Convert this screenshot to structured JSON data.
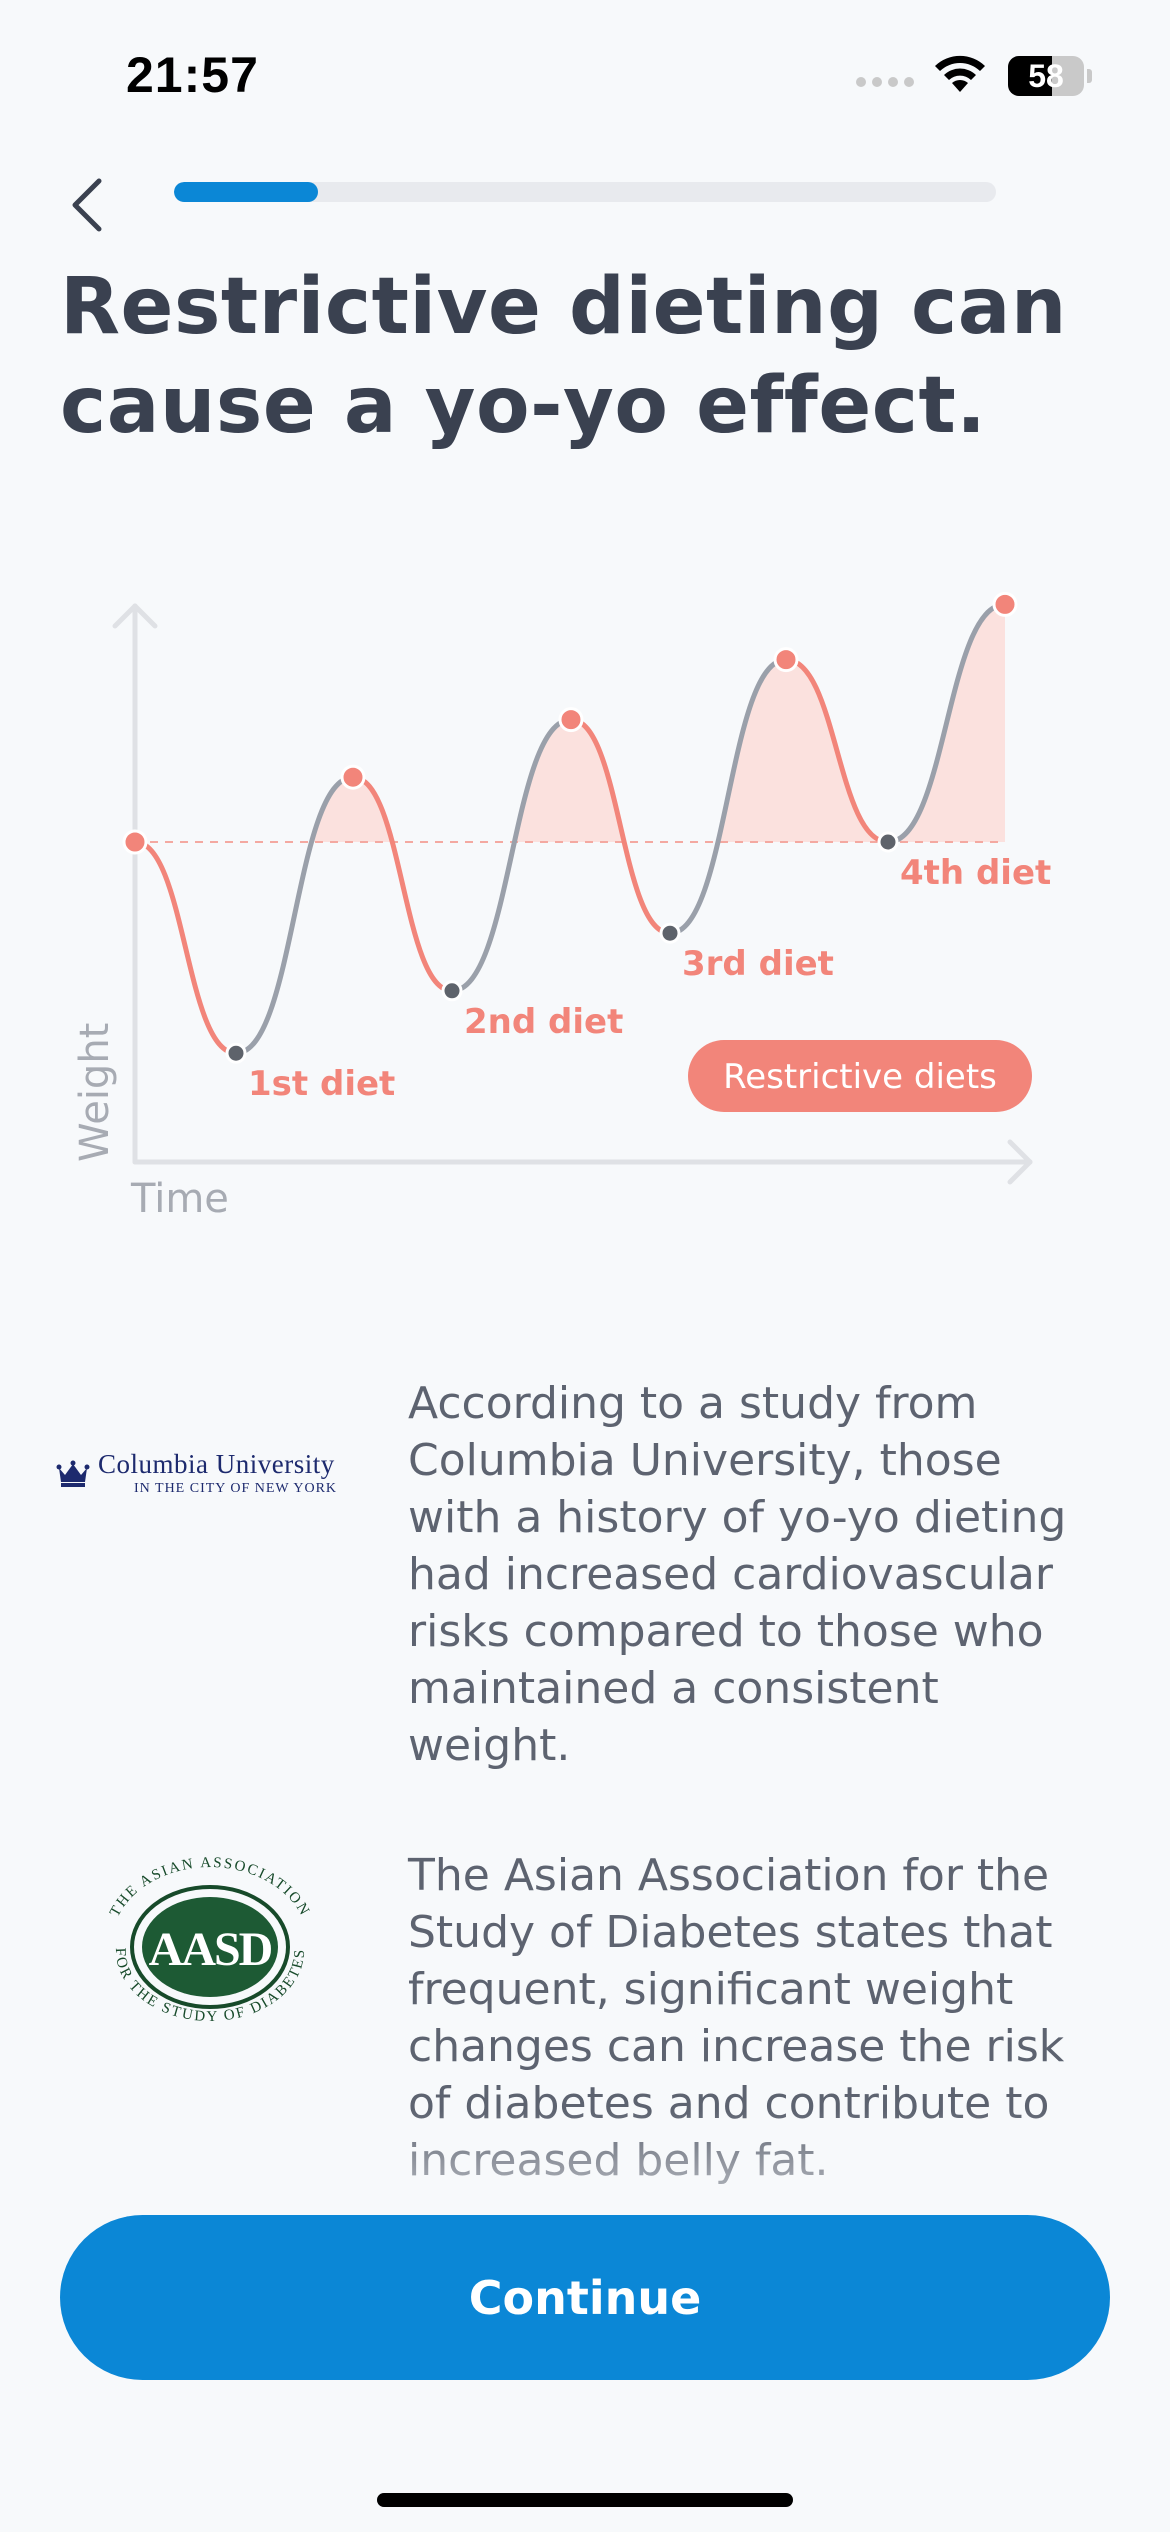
{
  "status_bar": {
    "time": "21:57",
    "battery_level": "58",
    "battery_fraction": 0.58
  },
  "header": {
    "progress_fraction": 0.175
  },
  "title": "Restrictive dieting can cause a yo-yo effect.",
  "chart_data": {
    "type": "line",
    "xlabel": "Time",
    "ylabel": "Weight",
    "baseline_label": "",
    "legend": "Restrictive diets",
    "colors": {
      "diet": "#f2857a",
      "regain": "#9aa0aa",
      "fill": "#fbe1de",
      "axis": "#dfe1e5"
    },
    "annotations": [
      "1st diet",
      "2nd diet",
      "3rd diet",
      "4th diet"
    ],
    "points": [
      {
        "x": 0,
        "y": 0,
        "kind": "start"
      },
      {
        "x": 1,
        "y": -0.88,
        "kind": "low",
        "label": "1st diet"
      },
      {
        "x": 2,
        "y": 0.27,
        "kind": "high"
      },
      {
        "x": 3,
        "y": -0.62,
        "kind": "low",
        "label": "2nd diet"
      },
      {
        "x": 4,
        "y": 0.51,
        "kind": "high"
      },
      {
        "x": 5,
        "y": -0.38,
        "kind": "low",
        "label": "3rd diet"
      },
      {
        "x": 6,
        "y": 0.76,
        "kind": "high"
      },
      {
        "x": 7,
        "y": 0.0,
        "kind": "low",
        "label": "4th diet"
      },
      {
        "x": 8,
        "y": 0.99,
        "kind": "end"
      }
    ]
  },
  "studies": [
    {
      "logo": "columbia-university-logo",
      "logo_text_main": "Columbia University",
      "logo_text_sub": "IN THE CITY OF NEW YORK",
      "text": "According to a study from Columbia University, those with a history of yo-yo dieting had increased cardiovascular risks compared to those who maintained a consistent weight."
    },
    {
      "logo": "aasd-seal-logo",
      "logo_text_top": "THE ASIAN ASSOCIATION",
      "logo_text_bottom": "FOR THE STUDY OF DIABETES",
      "logo_letters": "AASD",
      "text": "The Asian Association for the Study of Diabetes states that frequent, significant weight changes can increase the risk of diabetes and contribute to increased belly fat."
    }
  ],
  "footer": {
    "continue_label": "Continue"
  }
}
